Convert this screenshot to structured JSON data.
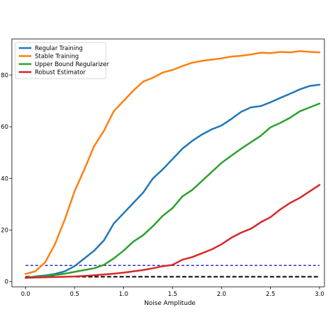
{
  "chart_data": {
    "type": "line",
    "title": "",
    "xlabel": "Noise Amplitude",
    "ylabel": "",
    "xlim": [
      -0.14,
      3.05
    ],
    "ylim": [
      -2,
      94
    ],
    "xticks": [
      0.0,
      0.5,
      1.0,
      1.5,
      2.0,
      2.5,
      3.0
    ],
    "xtick_labels": [
      "0.0",
      "0.5",
      "1.0",
      "1.5",
      "2.0",
      "2.5",
      "3.0"
    ],
    "yticks": [
      0,
      20,
      40,
      60,
      80
    ],
    "ytick_labels": [
      "0",
      "20",
      "40",
      "60",
      "80"
    ],
    "grid": false,
    "legend_position": "top-left",
    "x": [
      0.0,
      0.1,
      0.2,
      0.3,
      0.4,
      0.5,
      0.6,
      0.7,
      0.8,
      0.9,
      1.0,
      1.1,
      1.2,
      1.3,
      1.4,
      1.5,
      1.6,
      1.7,
      1.8,
      1.9,
      2.0,
      2.1,
      2.2,
      2.3,
      2.4,
      2.5,
      2.6,
      2.7,
      2.8,
      2.9,
      3.0
    ],
    "series": [
      {
        "name": "Regular Training",
        "color": "#1f77b4",
        "values": [
          1.5,
          2.0,
          2.4,
          3.0,
          4.0,
          6.0,
          9.0,
          12.0,
          16.0,
          22.5,
          26.5,
          30.5,
          34.5,
          40.0,
          43.5,
          47.5,
          51.5,
          54.5,
          57.0,
          59.0,
          60.5,
          63.0,
          65.8,
          67.5,
          68.0,
          69.5,
          71.2,
          72.8,
          74.5,
          75.8,
          76.3
        ]
      },
      {
        "name": "Stable Training",
        "color": "#ff7f0e",
        "values": [
          3.0,
          4.0,
          7.5,
          14.5,
          24.0,
          35.0,
          43.5,
          52.5,
          58.5,
          66.0,
          70.0,
          74.0,
          77.5,
          79.0,
          81.0,
          82.0,
          83.5,
          84.8,
          85.5,
          86.0,
          86.5,
          87.2,
          87.5,
          88.0,
          88.7,
          88.5,
          89.0,
          88.8,
          89.3,
          89.0,
          88.8
        ]
      },
      {
        "name": "Upper Bound Regularizer",
        "color": "#2ca02c",
        "values": [
          1.5,
          1.8,
          2.2,
          2.6,
          3.1,
          3.8,
          4.5,
          5.2,
          6.5,
          9.0,
          12.0,
          15.5,
          18.0,
          21.5,
          25.5,
          28.5,
          33.0,
          35.5,
          39.0,
          42.5,
          46.0,
          48.8,
          51.5,
          54.0,
          56.5,
          59.8,
          61.5,
          63.5,
          66.0,
          67.5,
          69.0
        ]
      },
      {
        "name": "Robust Estimator",
        "color": "#d62728",
        "values": [
          1.5,
          1.6,
          1.7,
          1.8,
          1.9,
          2.0,
          2.2,
          2.5,
          2.8,
          3.1,
          3.5,
          4.0,
          4.5,
          5.2,
          6.0,
          6.5,
          8.5,
          9.5,
          11.0,
          12.5,
          14.5,
          17.0,
          19.0,
          20.5,
          23.0,
          25.0,
          28.0,
          30.5,
          32.5,
          35.0,
          37.5
        ]
      }
    ],
    "reference_lines": [
      {
        "style": "dashed",
        "color": "#0000cc",
        "value": 6.3
      },
      {
        "style": "dashed",
        "color": "#000000",
        "value": 1.9
      }
    ]
  }
}
